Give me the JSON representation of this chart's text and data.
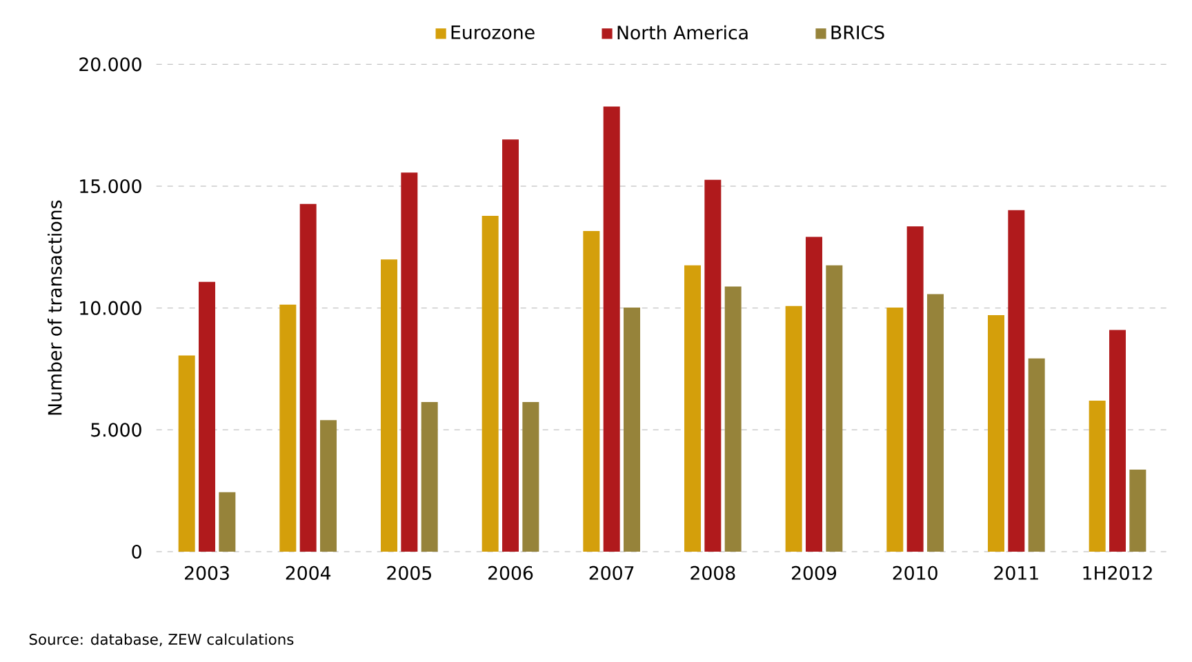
{
  "chart_data": {
    "type": "bar",
    "ylabel": "Number of transactions",
    "categories": [
      "2003",
      "2004",
      "2005",
      "2006",
      "2007",
      "2008",
      "2009",
      "2010",
      "2011",
      "1H2012"
    ],
    "series": [
      {
        "name": "Eurozone",
        "color": "#d49f0b",
        "values": [
          8050,
          10140,
          11990,
          13780,
          13160,
          11750,
          10080,
          10020,
          9710,
          6200
        ]
      },
      {
        "name": "North America",
        "color": "#b01a1c",
        "values": [
          11070,
          14270,
          15560,
          16920,
          18270,
          15260,
          12920,
          13350,
          14020,
          9100
        ]
      },
      {
        "name": "BRICS",
        "color": "#96833a",
        "values": [
          2440,
          5400,
          6140,
          6140,
          10020,
          10880,
          11750,
          10570,
          7930,
          3370
        ]
      }
    ],
    "ylim": [
      0,
      20000
    ],
    "yticks": [
      {
        "value": 0,
        "label": "0"
      },
      {
        "value": 5000,
        "label": "5.000"
      },
      {
        "value": 10000,
        "label": "10.000"
      },
      {
        "value": 15000,
        "label": "15.000"
      },
      {
        "value": 20000,
        "label": "20.000"
      }
    ],
    "grid": "y",
    "legend": "top",
    "annotations": [
      "Source: database, ZEW calculations"
    ]
  }
}
